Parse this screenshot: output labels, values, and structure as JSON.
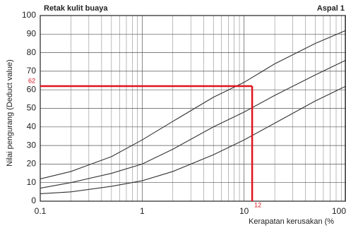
{
  "chart_data": {
    "type": "line",
    "title": "Retak kulit buaya",
    "subtitle": "Aspal 1",
    "x_label": "Kerapatan kerusakan (%",
    "y_label": "Nilai pengurang (Deduct value)",
    "x_scale": "log",
    "xlim": [
      0.1,
      100
    ],
    "xticks": [
      0.1,
      1,
      10,
      100
    ],
    "x_minor_grid": [
      0.2,
      0.3,
      0.4,
      0.5,
      0.6,
      0.7,
      0.8,
      0.9,
      2,
      3,
      4,
      5,
      6,
      7,
      8,
      9,
      20,
      30,
      40,
      50,
      60,
      70,
      80,
      90
    ],
    "ylim": [
      0,
      100
    ],
    "yticks": [
      0,
      10,
      20,
      30,
      40,
      50,
      60,
      70,
      80,
      90,
      100
    ],
    "grid": true,
    "x": [
      0.1,
      0.2,
      0.5,
      1,
      2,
      5,
      10,
      20,
      50,
      100
    ],
    "series": [
      {
        "color": "#333333",
        "values": [
          12,
          16,
          24,
          33,
          43,
          56,
          64,
          74,
          85,
          92
        ]
      },
      {
        "color": "#333333",
        "values": [
          7,
          10,
          15,
          20,
          28,
          40,
          48,
          57,
          68,
          76
        ]
      },
      {
        "color": "#333333",
        "values": [
          4,
          5,
          8,
          11,
          16,
          25,
          33,
          42,
          54,
          62
        ]
      }
    ],
    "reference": {
      "x": 12,
      "y": 62,
      "color": "#e0141e"
    }
  }
}
